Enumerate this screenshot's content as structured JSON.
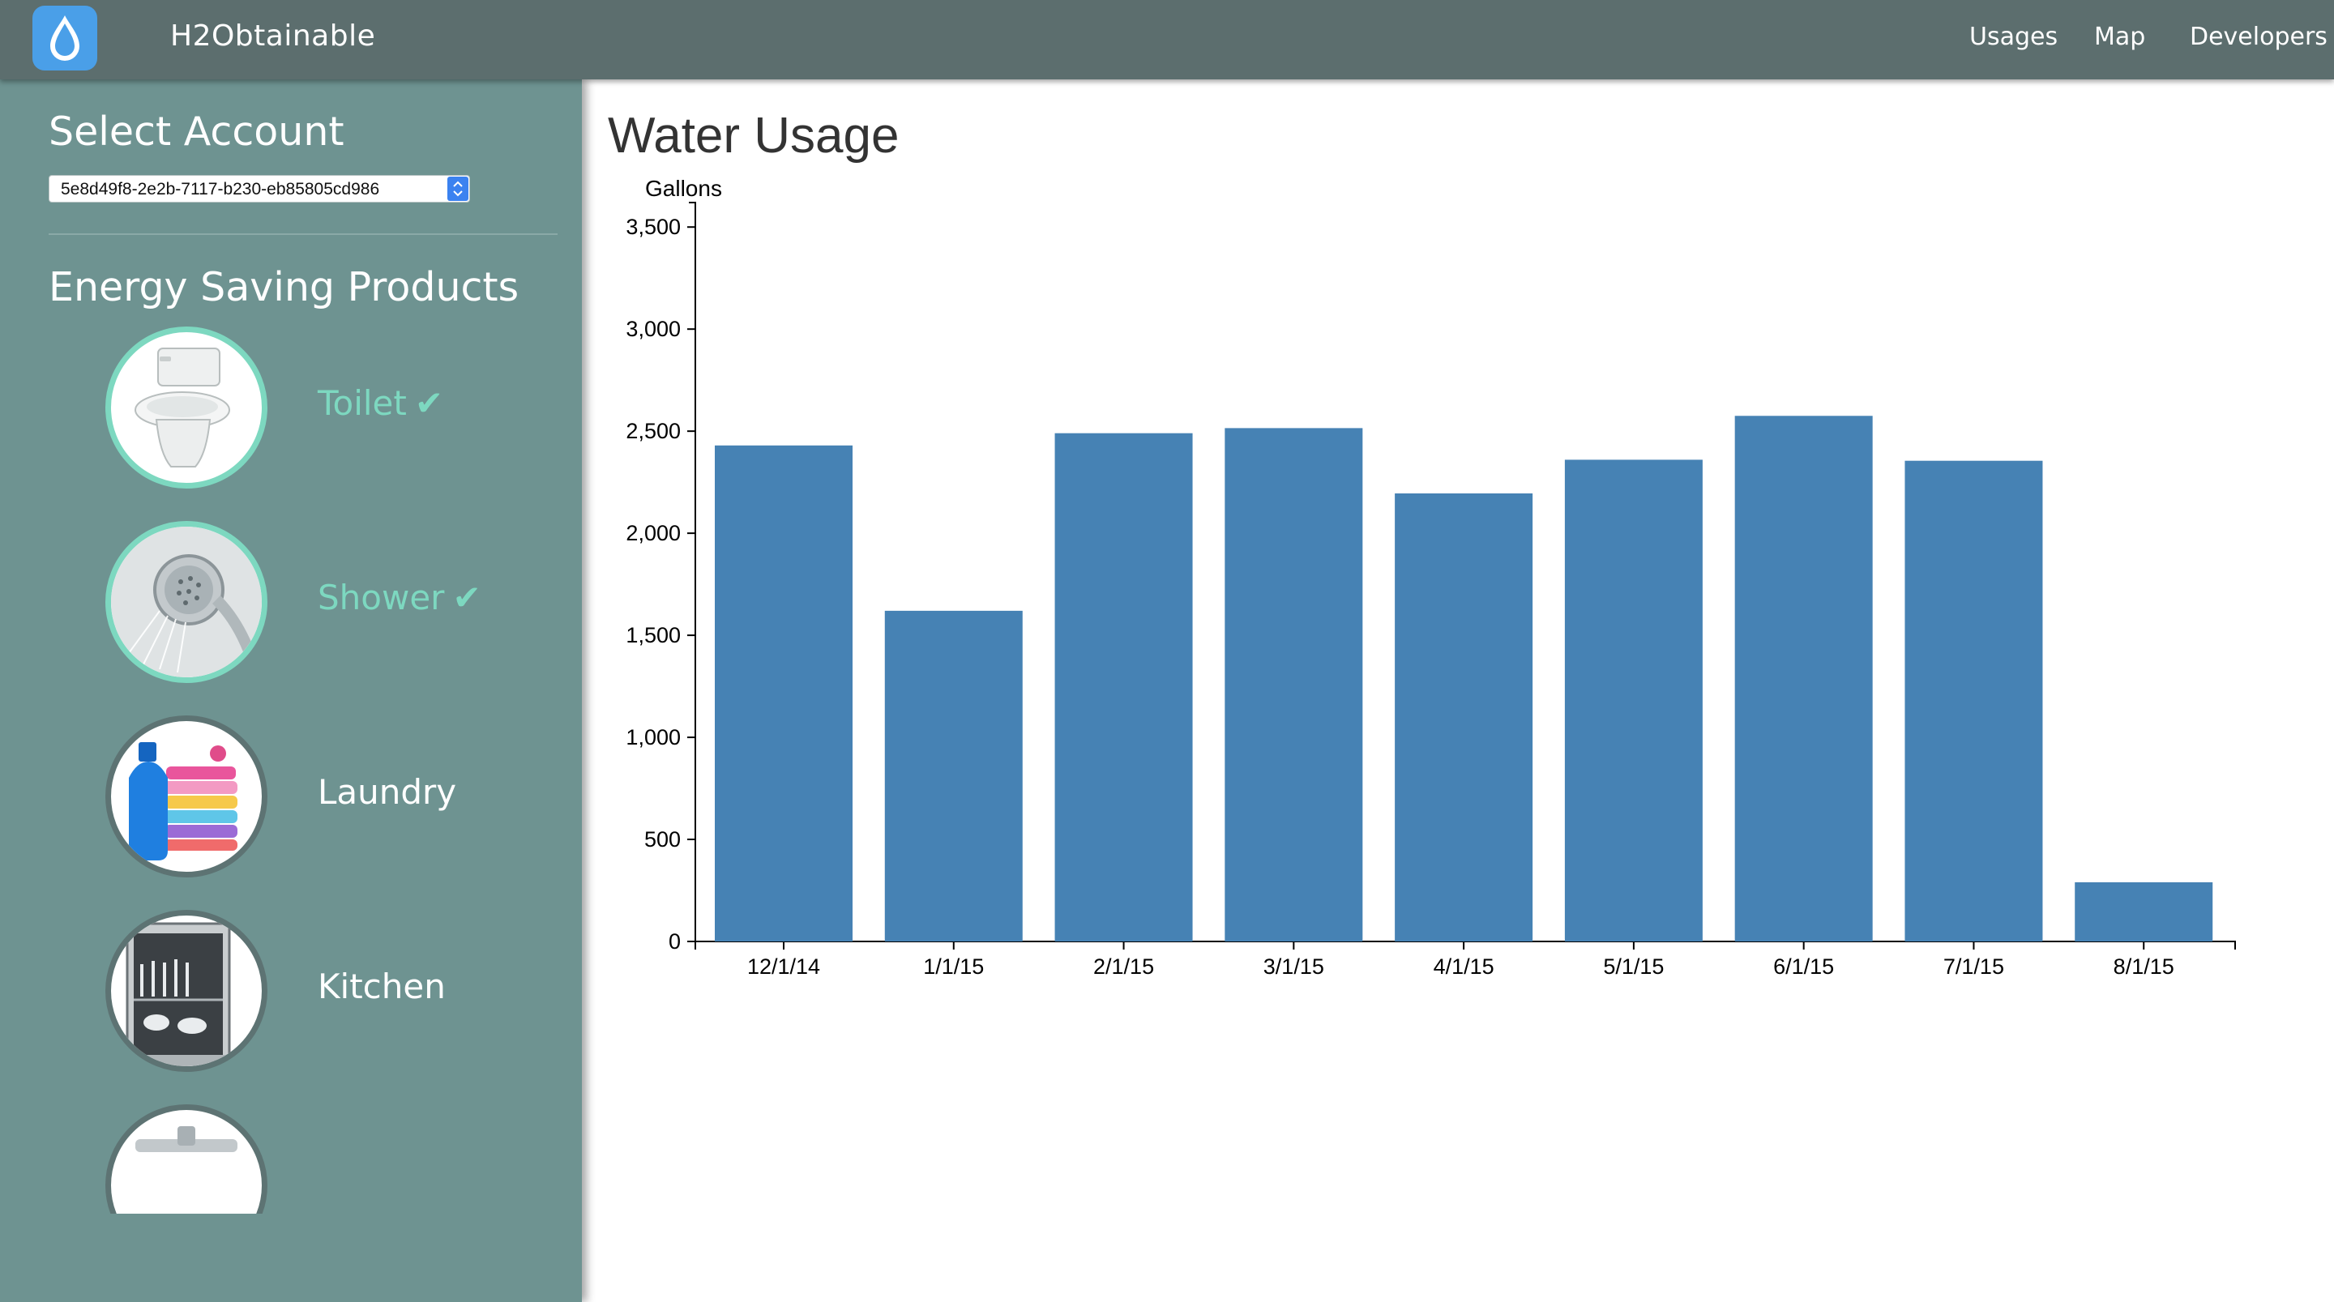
{
  "app": {
    "name": "H2Obtainable",
    "logo_icon": "water-drop-icon",
    "accent": "#4a9fe8"
  },
  "nav": {
    "items": [
      {
        "label": "Usages"
      },
      {
        "label": "Map"
      },
      {
        "label": "Developers"
      }
    ]
  },
  "sidebar": {
    "select_title": "Select Account",
    "account_value": "5e8d49f8-2e2b-7117-b230-eb85805cd986",
    "products_title": "Energy Saving Products",
    "products": [
      {
        "label": "Toilet",
        "icon": "toilet-icon",
        "selected": true
      },
      {
        "label": "Shower",
        "icon": "shower-icon",
        "selected": true
      },
      {
        "label": "Laundry",
        "icon": "laundry-icon",
        "selected": false
      },
      {
        "label": "Kitchen",
        "icon": "kitchen-icon",
        "selected": false
      },
      {
        "label": "",
        "icon": "faucet-icon",
        "selected": false
      }
    ],
    "check_glyph": "✔",
    "selected_color": "#7dd8c0"
  },
  "main": {
    "title": "Water Usage"
  },
  "chart_data": {
    "type": "bar",
    "title": "",
    "ylabel": "Gallons",
    "xlabel": "",
    "categories": [
      "12/1/14",
      "1/1/15",
      "2/1/15",
      "3/1/15",
      "4/1/15",
      "5/1/15",
      "6/1/15",
      "7/1/15",
      "8/1/15"
    ],
    "values": [
      2430,
      1620,
      2490,
      2515,
      2195,
      2360,
      2575,
      2355,
      290
    ],
    "ylim": [
      0,
      3620
    ],
    "yticks": [
      0,
      500,
      1000,
      1500,
      2000,
      2500,
      3000,
      3500
    ],
    "ytick_labels": [
      "0",
      "500",
      "1,000",
      "1,500",
      "2,000",
      "2,500",
      "3,000",
      "3,500"
    ],
    "bar_color": "#4682b4",
    "grid": false,
    "legend": "none"
  }
}
